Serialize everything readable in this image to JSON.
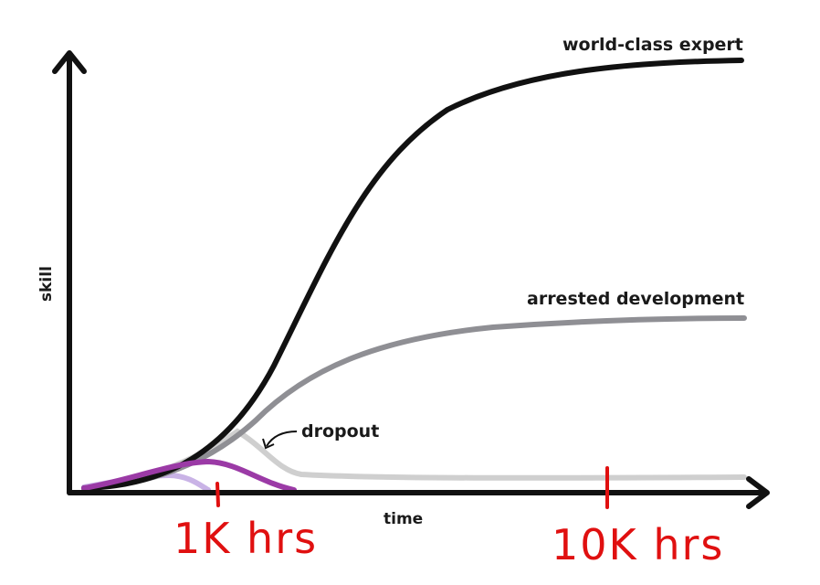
{
  "axes": {
    "x_label": "time",
    "y_label": "skill"
  },
  "curves": {
    "expert": {
      "label": "world-class expert",
      "color": "#111111"
    },
    "arrested": {
      "label": "arrested development",
      "color": "#8f8f94"
    },
    "dropout": {
      "label": "dropout",
      "color": "#cfcfcf"
    },
    "early_purple": {
      "color": "#9b3aa6"
    },
    "early_lavender": {
      "color": "#c9b3e6"
    }
  },
  "annotations": {
    "one_k": {
      "text": "1K hrs",
      "color": "#e01010"
    },
    "ten_k": {
      "text": "10K hrs",
      "color": "#e01010"
    }
  }
}
